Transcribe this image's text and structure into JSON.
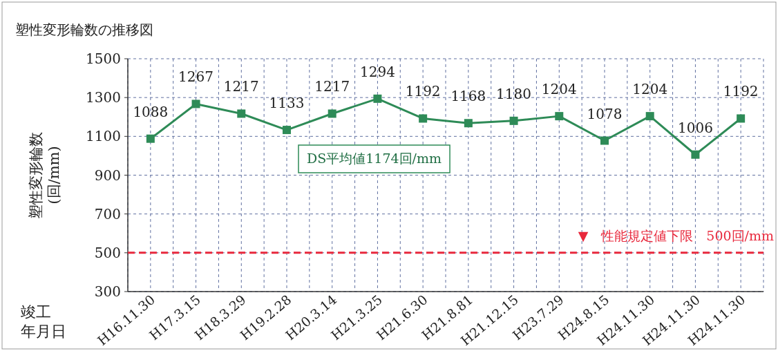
{
  "chart_data": {
    "type": "line",
    "title": "塑性変形輪数の推移図",
    "xlabel": "竣工年月日",
    "ylabel": "塑性変形輪数\n(回/mm)",
    "categories": [
      "H16.11.30",
      "H17.3.15",
      "H18.3.29",
      "H19.2.28",
      "H20.3.14",
      "H21.3.25",
      "H21.6.30",
      "H21.8.81",
      "H21.12.15",
      "H23.7.29",
      "H24.8.15",
      "H24.11.30",
      "H24.11.30",
      "H24.11.30"
    ],
    "series": [
      {
        "color": "#2e8b57",
        "values": [
          1088,
          1267,
          1217,
          1133,
          1217,
          1294,
          1192,
          1168,
          1180,
          1204,
          1078,
          1204,
          1006,
          1192
        ]
      }
    ],
    "ylim": [
      300,
      1500
    ],
    "yticks": [
      300,
      500,
      700,
      900,
      1100,
      1300,
      1500
    ],
    "grid": true,
    "marker": "square",
    "line_style": "solid",
    "data_labels": true,
    "ref_lines": [
      {
        "axis": "y",
        "value": 500,
        "label": "▼　性能規定値下限　500回/mm",
        "color": "#e8283c",
        "line_style": "dashed"
      }
    ],
    "annotations": [
      "DS平均値1174回/mm"
    ]
  }
}
